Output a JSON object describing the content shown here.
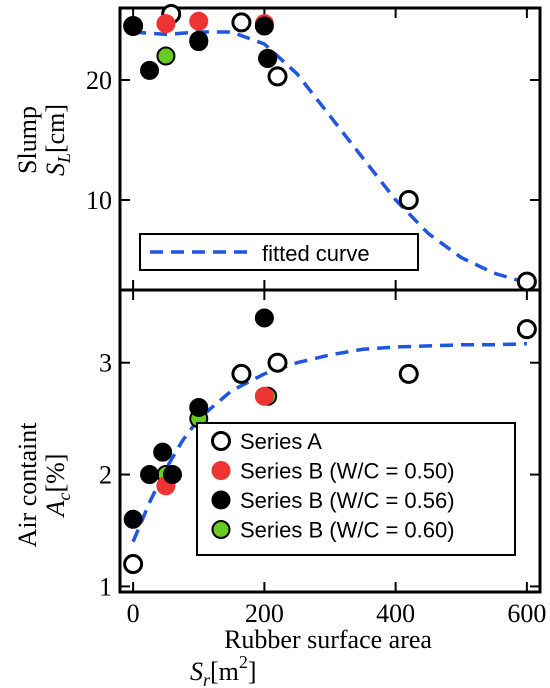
{
  "chart_data": [
    {
      "type": "scatter",
      "panel": "top",
      "ylabel_line1": "Slump",
      "ylabel_sym": "S",
      "ylabel_sub": "L",
      "ylabel_unit": "[cm]",
      "xlim": [
        -20,
        620
      ],
      "ylim": [
        2.5,
        26
      ],
      "yticks": [
        10,
        20
      ],
      "ytick_labels": [
        "10",
        "20"
      ],
      "grid": false,
      "legend_position": "bottom-left",
      "legend": [
        {
          "label": "fitted curve",
          "style": "dashed",
          "color": "#1f55e0"
        }
      ],
      "series": [
        {
          "key": "A",
          "color": "#ffffff",
          "stroke": "#000000",
          "points": [
            [
              0,
              24.5
            ],
            [
              58,
              25.5
            ],
            [
              165,
              24.8
            ],
            [
              220,
              20.3
            ],
            [
              420,
              10
            ],
            [
              600,
              3.2
            ]
          ]
        },
        {
          "key": "B050",
          "color": "#ee3333",
          "stroke": "#ee3333",
          "points": [
            [
              50,
              24.7
            ],
            [
              100,
              24.9
            ],
            [
              200,
              24.7
            ]
          ]
        },
        {
          "key": "B056",
          "color": "#000000",
          "stroke": "#000000",
          "points": [
            [
              0,
              24.5
            ],
            [
              25,
              20.8
            ],
            [
              100,
              23.3
            ],
            [
              200,
              24.5
            ],
            [
              205,
              21.8
            ]
          ]
        },
        {
          "key": "B060",
          "color": "#66cc22",
          "stroke": "#000000",
          "points": [
            [
              50,
              22
            ],
            [
              100,
              23.2
            ],
            [
              205,
              21.8
            ]
          ]
        }
      ],
      "fitted_curve": {
        "color": "#1f55e0",
        "points": [
          [
            0,
            24
          ],
          [
            50,
            23.8
          ],
          [
            100,
            24
          ],
          [
            150,
            24
          ],
          [
            200,
            23
          ],
          [
            250,
            20.5
          ],
          [
            300,
            17
          ],
          [
            350,
            13.5
          ],
          [
            400,
            10
          ],
          [
            450,
            7.2
          ],
          [
            500,
            5.2
          ],
          [
            550,
            3.9
          ],
          [
            600,
            3.1
          ]
        ]
      }
    },
    {
      "type": "scatter",
      "panel": "bottom",
      "ylabel_line1": "Air containt",
      "ylabel_sym": "A",
      "ylabel_sub": "c",
      "ylabel_unit": "[%]",
      "xlabel_line1": "Rubber surface area",
      "xlabel_sym": "S",
      "xlabel_sub": "r",
      "xlabel_unit": "[m",
      "xlabel_sup": "2",
      "xlabel_close": "]",
      "xlim": [
        -20,
        620
      ],
      "ylim": [
        0.95,
        3.65
      ],
      "xticks": [
        0,
        200,
        400,
        600
      ],
      "xtick_labels": [
        "0",
        "200",
        "400",
        "600"
      ],
      "yticks": [
        1,
        2,
        3
      ],
      "ytick_labels": [
        "1",
        "2",
        "3"
      ],
      "grid": false,
      "legend_position": "bottom-right",
      "legend": [
        {
          "key": "A",
          "label": "Series A",
          "fill": "#ffffff",
          "stroke": "#000000"
        },
        {
          "key": "B050",
          "label": "Series B (W/C = 0.50)",
          "fill": "#ee3333",
          "stroke": "#ee3333"
        },
        {
          "key": "B056",
          "label": "Series B (W/C = 0.56)",
          "fill": "#000000",
          "stroke": "#000000"
        },
        {
          "key": "B060",
          "label": "Series B (W/C = 0.60)",
          "fill": "#66cc22",
          "stroke": "#000000"
        }
      ],
      "series": [
        {
          "key": "A",
          "color": "#ffffff",
          "stroke": "#000000",
          "points": [
            [
              0,
              1.2
            ],
            [
              165,
              2.9
            ],
            [
              220,
              3.0
            ],
            [
              420,
              2.9
            ],
            [
              600,
              3.3
            ]
          ]
        },
        {
          "key": "B050",
          "color": "#ee3333",
          "stroke": "#ee3333",
          "points": [
            [
              50,
              1.9
            ],
            [
              200,
              2.7
            ]
          ]
        },
        {
          "key": "B056",
          "color": "#000000",
          "stroke": "#000000",
          "points": [
            [
              0,
              1.6
            ],
            [
              25,
              2.0
            ],
            [
              45,
              2.2
            ],
            [
              60,
              2.0
            ],
            [
              100,
              2.6
            ],
            [
              200,
              3.4
            ]
          ]
        },
        {
          "key": "B060",
          "color": "#66cc22",
          "stroke": "#000000",
          "points": [
            [
              50,
              2.0
            ],
            [
              100,
              2.5
            ],
            [
              205,
              2.7
            ]
          ]
        }
      ],
      "fitted_curve": {
        "color": "#1f55e0",
        "points": [
          [
            0,
            1.4
          ],
          [
            25,
            1.75
          ],
          [
            50,
            2.05
          ],
          [
            75,
            2.3
          ],
          [
            100,
            2.5
          ],
          [
            150,
            2.75
          ],
          [
            200,
            2.9
          ],
          [
            250,
            3.0
          ],
          [
            300,
            3.07
          ],
          [
            350,
            3.12
          ],
          [
            400,
            3.14
          ],
          [
            450,
            3.15
          ],
          [
            500,
            3.16
          ],
          [
            550,
            3.16
          ],
          [
            600,
            3.17
          ]
        ]
      }
    }
  ]
}
